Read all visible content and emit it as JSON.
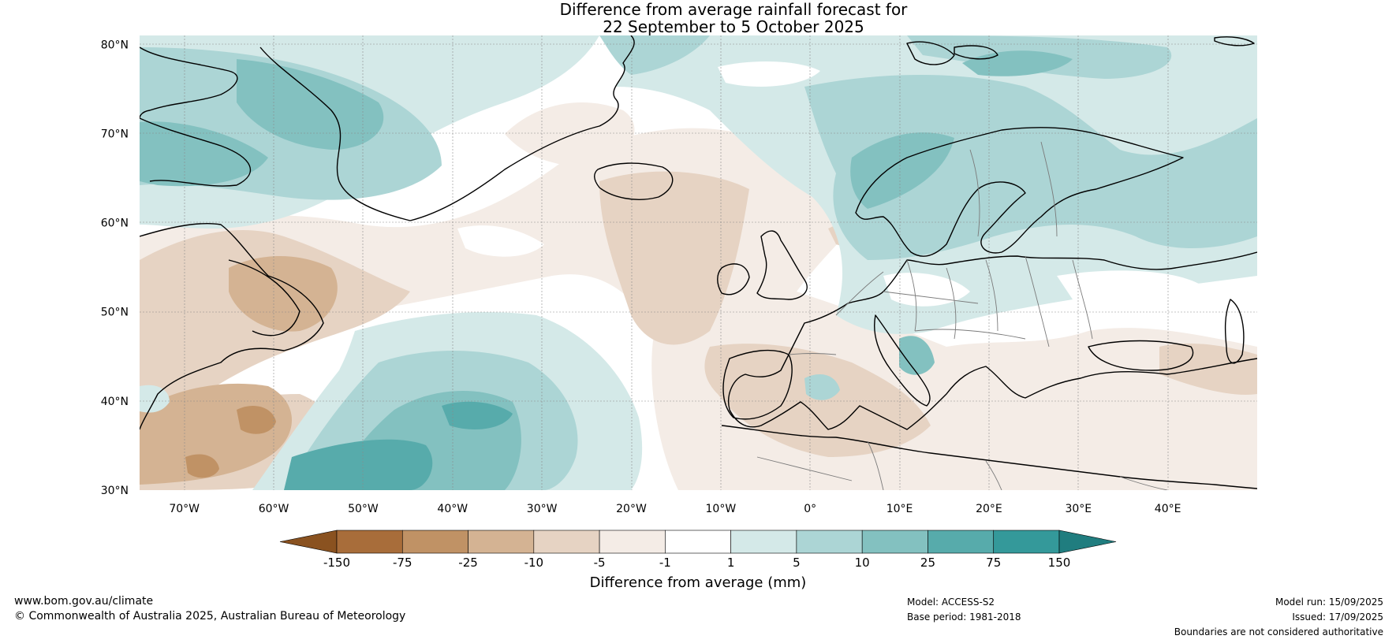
{
  "title": {
    "line1": "Difference from average rainfall forecast for",
    "line2": "22 September to 5 October 2025"
  },
  "axes": {
    "lat_ticks": [
      {
        "value": 80,
        "label": "80°N"
      },
      {
        "value": 70,
        "label": "70°N"
      },
      {
        "value": 60,
        "label": "60°N"
      },
      {
        "value": 50,
        "label": "50°N"
      },
      {
        "value": 40,
        "label": "40°N"
      },
      {
        "value": 30,
        "label": "30°N"
      }
    ],
    "lon_ticks": [
      {
        "value": -70,
        "label": "70°W"
      },
      {
        "value": -60,
        "label": "60°W"
      },
      {
        "value": -50,
        "label": "50°W"
      },
      {
        "value": -40,
        "label": "40°W"
      },
      {
        "value": -30,
        "label": "30°W"
      },
      {
        "value": -20,
        "label": "20°W"
      },
      {
        "value": -10,
        "label": "10°W"
      },
      {
        "value": 0,
        "label": "0°"
      },
      {
        "value": 10,
        "label": "10°E"
      },
      {
        "value": 20,
        "label": "20°E"
      },
      {
        "value": 30,
        "label": "30°E"
      },
      {
        "value": 40,
        "label": "40°E"
      }
    ],
    "lon_range": [
      -75,
      50
    ],
    "lat_range": [
      30,
      81
    ]
  },
  "colorbar": {
    "label": "Difference from average (mm)",
    "ticks": [
      "-150",
      "-75",
      "-25",
      "-10",
      "-5",
      "-1",
      "1",
      "5",
      "10",
      "25",
      "75",
      "150"
    ],
    "colors": [
      "#8a5220",
      "#a86d3a",
      "#c09265",
      "#d4b393",
      "#e6d3c3",
      "#f4ece6",
      "#ffffff",
      "#d4e9e8",
      "#acd5d5",
      "#83c1c0",
      "#57abab",
      "#34999a",
      "#207d7f"
    ]
  },
  "footer": {
    "website": "www.bom.gov.au/climate",
    "copyright": "© Commonwealth of Australia 2025, Australian Bureau of Meteorology",
    "model": "Model: ACCESS-S2",
    "base_period": "Base period: 1981-2018",
    "model_run": "Model run: 15/09/2025",
    "issued": "Issued: 17/09/2025",
    "disclaimer": "Boundaries are not considered authoritative"
  }
}
